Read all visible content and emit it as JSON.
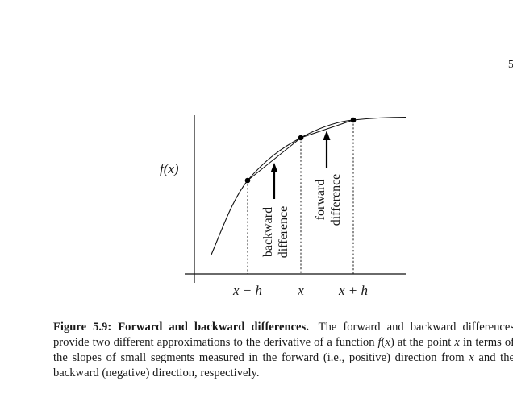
{
  "page_number": "5",
  "figure": {
    "y_label": "f(x)",
    "x_ticks": [
      "x − h",
      "x",
      "x + h"
    ],
    "backward_label": [
      "backward",
      "difference"
    ],
    "forward_label": [
      "forward",
      "difference"
    ]
  },
  "caption": {
    "title": "Figure 5.9: Forward and backward differences.",
    "seg1": "The forward and backward differences provide two different approximations to the derivative of a function ",
    "func": "f",
    "paren_open": "(",
    "var1": "x",
    "paren_close": ")",
    "seg2": " at the point ",
    "var2": "x",
    "seg3": " in terms of the slopes of small segments measured in the forward (i.e., positive) direction from ",
    "var3": "x",
    "seg4": " and the backward (negative) direction, respectively."
  }
}
